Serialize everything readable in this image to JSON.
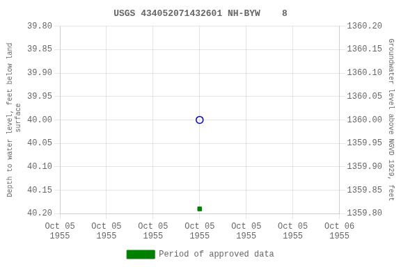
{
  "chart_data": {
    "type": "scatter",
    "title": "USGS 434052071432601 NH-BYW    8",
    "y_label": "Depth to water level, feet below land\n surface",
    "y2_label": "Groundwater level above NGVD 1929, feet",
    "x": [
      3
    ],
    "series": [
      {
        "values": [
          40.0
        ],
        "color": "#0000cc",
        "marker": "open_circle"
      },
      {
        "name": "Period of approved data",
        "values": [
          40.19
        ],
        "color": "#008000",
        "marker": "square"
      }
    ],
    "xlim": [
      0,
      6
    ],
    "xticks": [
      {
        "value": 0,
        "label": "Oct 05\n1955"
      },
      {
        "value": 1,
        "label": "Oct 05\n1955"
      },
      {
        "value": 2,
        "label": "Oct 05\n1955"
      },
      {
        "value": 3,
        "label": "Oct 05\n1955"
      },
      {
        "value": 4,
        "label": "Oct 05\n1955"
      },
      {
        "value": 5,
        "label": "Oct 05\n1955"
      },
      {
        "value": 6,
        "label": "Oct 06\n1955"
      }
    ],
    "ylim": [
      40.2,
      39.8
    ],
    "yticks": [
      {
        "value": 39.8,
        "label": "39.80"
      },
      {
        "value": 39.85,
        "label": "39.85"
      },
      {
        "value": 39.9,
        "label": "39.90"
      },
      {
        "value": 39.95,
        "label": "39.95"
      },
      {
        "value": 40.0,
        "label": "40.00"
      },
      {
        "value": 40.05,
        "label": "40.05"
      },
      {
        "value": 40.1,
        "label": "40.10"
      },
      {
        "value": 40.15,
        "label": "40.15"
      },
      {
        "value": 40.2,
        "label": "40.20"
      }
    ],
    "y2lim": [
      1359.8,
      1360.2
    ],
    "y2ticks": [
      {
        "value": 1359.8,
        "label": "1359.80"
      },
      {
        "value": 1359.85,
        "label": "1359.85"
      },
      {
        "value": 1359.9,
        "label": "1359.90"
      },
      {
        "value": 1359.95,
        "label": "1359.95"
      },
      {
        "value": 1360.0,
        "label": "1360.00"
      },
      {
        "value": 1360.05,
        "label": "1360.05"
      },
      {
        "value": 1360.1,
        "label": "1360.10"
      },
      {
        "value": 1360.15,
        "label": "1360.15"
      },
      {
        "value": 1360.2,
        "label": "1360.20"
      }
    ],
    "grid": true,
    "legend": "bottom"
  }
}
